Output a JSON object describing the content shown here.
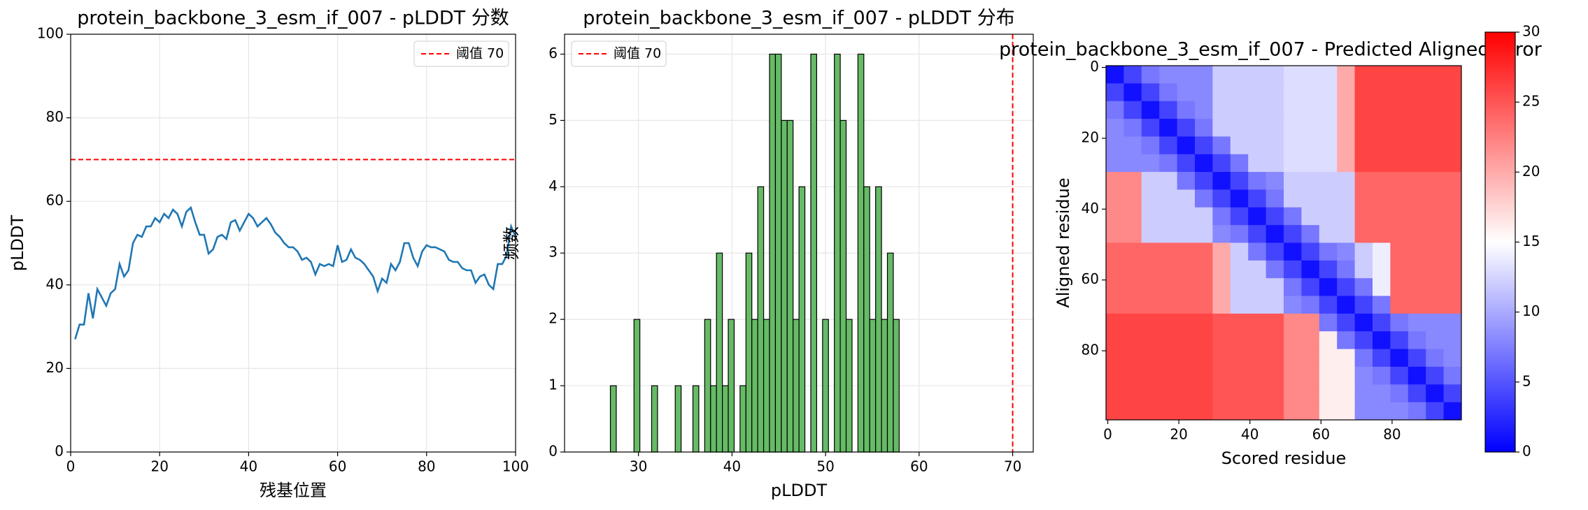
{
  "chart_data": [
    {
      "type": "line",
      "title": "protein_backbone_3_esm_if_007 - pLDDT 分数",
      "x_label": "残基位置",
      "y_label": "pLDDT",
      "x": [
        1,
        2,
        3,
        4,
        5,
        6,
        7,
        8,
        9,
        10,
        11,
        12,
        13,
        14,
        15,
        16,
        17,
        18,
        19,
        20,
        21,
        22,
        23,
        24,
        25,
        26,
        27,
        28,
        29,
        30,
        31,
        32,
        33,
        34,
        35,
        36,
        37,
        38,
        39,
        40,
        41,
        42,
        43,
        44,
        45,
        46,
        47,
        48,
        49,
        50,
        51,
        52,
        53,
        54,
        55,
        56,
        57,
        58,
        59,
        60,
        61,
        62,
        63,
        64,
        65,
        66,
        67,
        68,
        69,
        70,
        71,
        72,
        73,
        74,
        75,
        76,
        77,
        78,
        79,
        80,
        81,
        82,
        83,
        84,
        85,
        86,
        87,
        88,
        89,
        90,
        91,
        92,
        93,
        94,
        95,
        96,
        97,
        98,
        99,
        100
      ],
      "series": [
        {
          "color": "#1f77b4",
          "values": [
            27,
            30.5,
            30.5,
            38,
            32,
            39,
            37,
            35,
            38,
            39,
            45,
            42,
            43.5,
            50,
            52,
            51.5,
            54,
            54,
            56,
            55,
            57,
            56,
            58,
            57,
            54,
            57.5,
            58.5,
            55,
            52,
            52,
            47.5,
            48.5,
            51.5,
            52,
            51,
            55,
            55.5,
            53,
            55,
            57,
            56,
            54,
            55,
            56,
            54.5,
            52.5,
            51.5,
            50,
            49,
            49,
            48,
            46,
            46.5,
            45.5,
            42.5,
            45,
            44.5,
            45,
            44.5,
            49.5,
            45.5,
            46,
            48.5,
            46.5,
            46,
            45,
            43.5,
            42,
            38.5,
            41.5,
            40.5,
            45,
            43.5,
            45.5,
            50,
            50,
            46.5,
            44.5,
            48,
            49.5,
            49,
            49,
            48.5,
            48,
            46,
            45.5,
            45.5,
            44,
            43.5,
            43.5,
            40.5,
            42,
            42.5,
            40,
            39,
            45,
            45,
            47,
            54,
            51.5
          ]
        }
      ],
      "threshold": {
        "value": 70,
        "label": "阈值 70",
        "color": "#ff0000"
      },
      "xlim": [
        0,
        100
      ],
      "ylim": [
        0,
        100
      ],
      "xticks": [
        0,
        20,
        40,
        60,
        80,
        100
      ],
      "yticks": [
        0,
        20,
        40,
        60,
        80,
        100
      ],
      "grid": true,
      "legend": "upper right"
    },
    {
      "type": "histogram",
      "title": "protein_backbone_3_esm_if_007 - pLDDT 分布",
      "x_label": "pLDDT",
      "y_label": "频数",
      "bins": [
        27,
        27.63,
        28.26,
        28.89,
        29.52,
        30.15,
        30.78,
        31.41,
        32.04,
        32.67,
        33.3,
        33.93,
        34.56,
        35.19,
        35.82,
        36.45,
        37.08,
        37.71,
        38.34,
        38.97,
        39.6,
        40.23,
        40.86,
        41.49,
        42.12,
        42.75,
        43.38,
        44.01,
        44.64,
        45.27,
        45.9,
        46.53,
        47.16,
        47.79,
        48.42,
        49.05,
        49.68,
        50.31,
        50.94,
        51.57,
        52.2,
        52.83,
        53.46,
        54.09,
        54.72,
        55.35,
        55.98,
        56.61,
        57.24,
        57.87,
        58.5
      ],
      "counts": [
        1,
        0,
        0,
        0,
        2,
        0,
        0,
        1,
        0,
        0,
        0,
        1,
        0,
        0,
        1,
        0,
        2,
        1,
        3,
        1,
        2,
        0,
        1,
        3,
        2,
        4,
        2,
        6,
        6,
        5,
        5,
        2,
        4,
        0,
        6,
        0,
        2,
        0,
        6,
        5,
        2,
        0,
        6,
        4,
        2,
        4,
        2,
        3,
        2,
        0
      ],
      "color": "#66bb66",
      "edge_color": "#000000",
      "threshold": {
        "value": 70,
        "label": "阈值 70",
        "color": "#ff0000"
      },
      "xlim": [
        22.1,
        72.2
      ],
      "ylim": [
        0,
        6.3
      ],
      "xticks": [
        30,
        40,
        50,
        60,
        70
      ],
      "yticks": [
        0,
        1,
        2,
        3,
        4,
        5,
        6
      ],
      "grid": true,
      "legend": "upper left"
    },
    {
      "type": "heatmap",
      "title": "protein_backbone_3_esm_if_007 - Predicted Aligned Error",
      "x_label": "Scored residue",
      "y_label": "Aligned residue",
      "matrix": [
        [
          1,
          4,
          7,
          8,
          8,
          8,
          12,
          12,
          12,
          12,
          13,
          13,
          13,
          20,
          26,
          26,
          26,
          26,
          26,
          26
        ],
        [
          4,
          1,
          4,
          7,
          8,
          8,
          12,
          12,
          12,
          12,
          13,
          13,
          13,
          20,
          26,
          26,
          26,
          26,
          26,
          26
        ],
        [
          7,
          4,
          1,
          4,
          7,
          8,
          12,
          12,
          12,
          12,
          13,
          13,
          13,
          20,
          26,
          26,
          26,
          26,
          26,
          26
        ],
        [
          8,
          7,
          4,
          1,
          4,
          7,
          12,
          12,
          12,
          12,
          13,
          13,
          13,
          20,
          26,
          26,
          26,
          26,
          26,
          26
        ],
        [
          8,
          8,
          7,
          4,
          1,
          4,
          7,
          12,
          12,
          12,
          13,
          13,
          13,
          20,
          26,
          26,
          26,
          26,
          26,
          26
        ],
        [
          8,
          8,
          8,
          7,
          4,
          1,
          4,
          7,
          12,
          12,
          13,
          13,
          13,
          20,
          26,
          26,
          26,
          26,
          26,
          26
        ],
        [
          22,
          22,
          12,
          12,
          7,
          4,
          1,
          4,
          7,
          8,
          12,
          12,
          12,
          12,
          24,
          24,
          24,
          24,
          24,
          24
        ],
        [
          22,
          22,
          12,
          12,
          12,
          7,
          4,
          1,
          4,
          7,
          12,
          12,
          12,
          12,
          24,
          24,
          24,
          24,
          24,
          24
        ],
        [
          22,
          22,
          12,
          12,
          12,
          12,
          7,
          4,
          1,
          4,
          7,
          12,
          12,
          12,
          24,
          24,
          24,
          24,
          24,
          24
        ],
        [
          22,
          22,
          12,
          12,
          12,
          12,
          8,
          7,
          4,
          1,
          4,
          7,
          12,
          12,
          24,
          24,
          24,
          24,
          24,
          24
        ],
        [
          24,
          24,
          24,
          24,
          24,
          24,
          20,
          12,
          7,
          4,
          1,
          4,
          7,
          8,
          12,
          14,
          24,
          24,
          24,
          24
        ],
        [
          24,
          24,
          24,
          24,
          24,
          24,
          20,
          12,
          12,
          7,
          4,
          1,
          4,
          7,
          12,
          14,
          24,
          24,
          24,
          24
        ],
        [
          24,
          24,
          24,
          24,
          24,
          24,
          20,
          12,
          12,
          12,
          7,
          4,
          1,
          4,
          7,
          14,
          24,
          24,
          24,
          24
        ],
        [
          24,
          24,
          24,
          24,
          24,
          24,
          20,
          12,
          12,
          12,
          8,
          7,
          4,
          1,
          4,
          7,
          24,
          24,
          24,
          24
        ],
        [
          26,
          26,
          26,
          26,
          26,
          26,
          25,
          25,
          25,
          25,
          22,
          22,
          7,
          4,
          1,
          4,
          7,
          8,
          8,
          8
        ],
        [
          26,
          26,
          26,
          26,
          26,
          26,
          25,
          25,
          25,
          25,
          22,
          22,
          16,
          7,
          4,
          1,
          4,
          7,
          8,
          8
        ],
        [
          26,
          26,
          26,
          26,
          26,
          26,
          25,
          25,
          25,
          25,
          22,
          22,
          16,
          16,
          7,
          4,
          1,
          4,
          7,
          8
        ],
        [
          26,
          26,
          26,
          26,
          26,
          26,
          25,
          25,
          25,
          25,
          22,
          22,
          16,
          16,
          8,
          7,
          4,
          1,
          4,
          7
        ],
        [
          26,
          26,
          26,
          26,
          26,
          26,
          25,
          25,
          25,
          25,
          22,
          22,
          16,
          16,
          8,
          8,
          7,
          4,
          1,
          4
        ],
        [
          26,
          26,
          26,
          26,
          26,
          26,
          25,
          25,
          25,
          25,
          22,
          22,
          16,
          16,
          8,
          8,
          8,
          7,
          4,
          1
        ]
      ],
      "colormap": "bwr",
      "clim": [
        0,
        30
      ],
      "cticks": [
        0,
        5,
        10,
        15,
        20,
        25,
        30
      ],
      "xlim": [
        -0.5,
        99.5
      ],
      "ylim": [
        99.5,
        -0.5
      ],
      "xticks": [
        0,
        20,
        40,
        60,
        80
      ],
      "yticks": [
        0,
        20,
        40,
        60,
        80
      ],
      "grid": false
    }
  ]
}
